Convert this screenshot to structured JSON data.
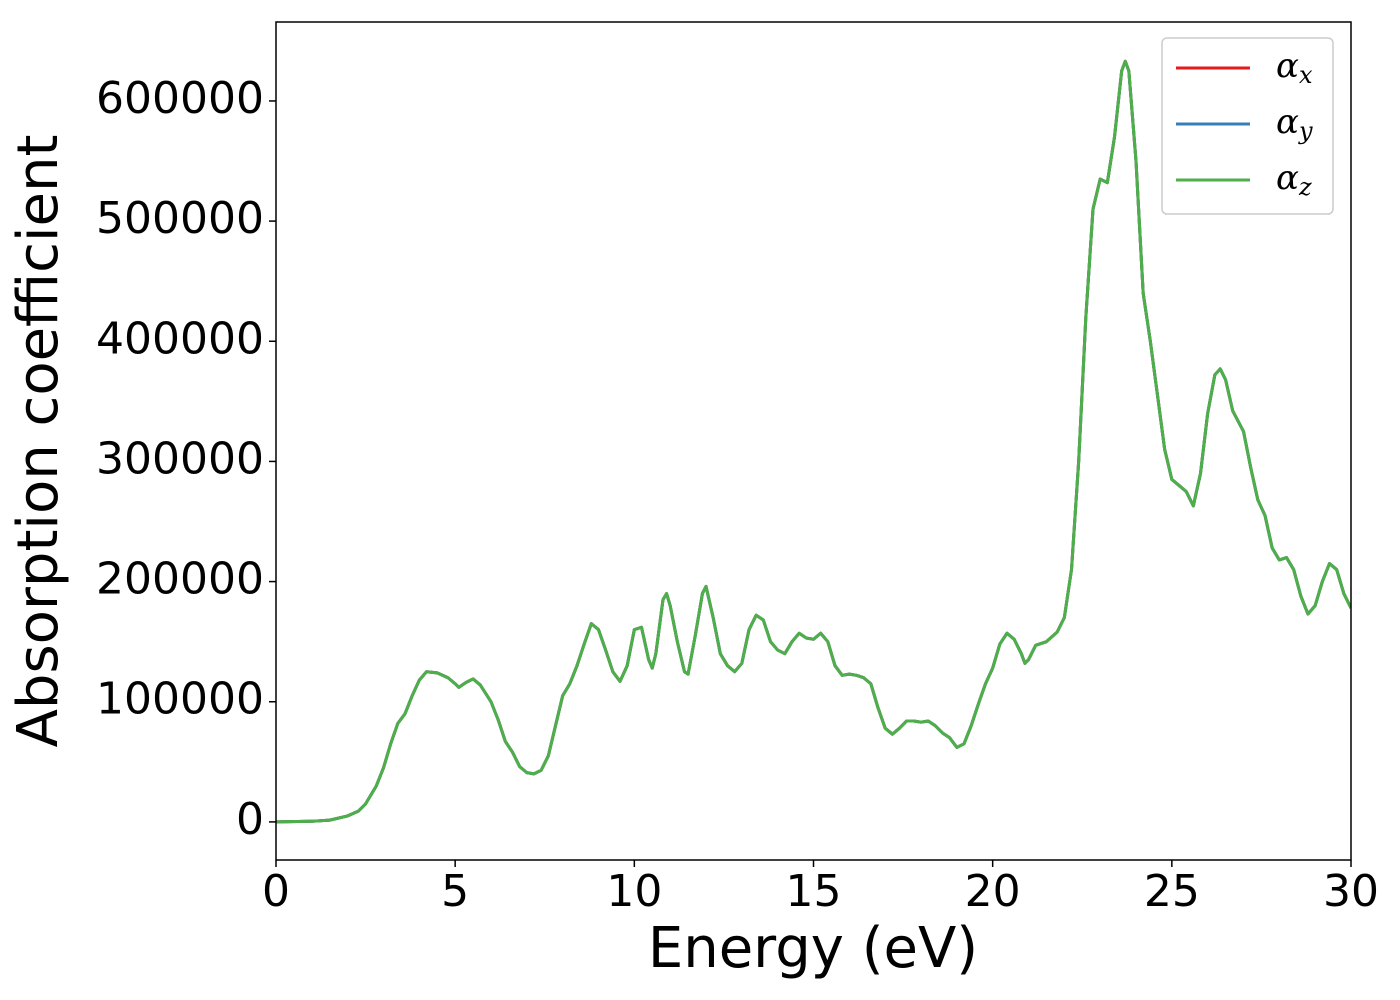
{
  "chart_data": {
    "type": "line",
    "xlabel": "Energy (eV)",
    "ylabel": "Absorption coefficient",
    "x": [
      0,
      1,
      1.5,
      2,
      2.3,
      2.5,
      2.8,
      3.0,
      3.2,
      3.4,
      3.6,
      3.8,
      4.0,
      4.2,
      4.5,
      4.8,
      5.0,
      5.1,
      5.3,
      5.5,
      5.7,
      6.0,
      6.2,
      6.4,
      6.6,
      6.8,
      7.0,
      7.2,
      7.4,
      7.6,
      7.8,
      8.0,
      8.2,
      8.4,
      8.6,
      8.8,
      9.0,
      9.2,
      9.4,
      9.6,
      9.8,
      10.0,
      10.2,
      10.4,
      10.5,
      10.6,
      10.8,
      10.9,
      11.0,
      11.2,
      11.4,
      11.5,
      11.7,
      11.9,
      12.0,
      12.2,
      12.4,
      12.6,
      12.8,
      13.0,
      13.2,
      13.4,
      13.6,
      13.8,
      14.0,
      14.2,
      14.4,
      14.6,
      14.8,
      15.0,
      15.2,
      15.4,
      15.6,
      15.8,
      16.0,
      16.2,
      16.4,
      16.6,
      16.8,
      17.0,
      17.2,
      17.4,
      17.6,
      17.8,
      18.0,
      18.2,
      18.4,
      18.6,
      18.8,
      19.0,
      19.2,
      19.4,
      19.6,
      19.8,
      20.0,
      20.2,
      20.4,
      20.6,
      20.8,
      20.9,
      21.0,
      21.2,
      21.5,
      21.8,
      22.0,
      22.2,
      22.4,
      22.6,
      22.8,
      23.0,
      23.2,
      23.4,
      23.6,
      23.7,
      23.8,
      24.0,
      24.2,
      24.4,
      24.6,
      24.8,
      25.0,
      25.2,
      25.4,
      25.6,
      25.8,
      26.0,
      26.2,
      26.35,
      26.5,
      26.7,
      27.0,
      27.2,
      27.4,
      27.6,
      27.8,
      28.0,
      28.2,
      28.4,
      28.6,
      28.8,
      29.0,
      29.2,
      29.4,
      29.6,
      29.8,
      30.0
    ],
    "series": [
      {
        "name": "αx",
        "color": "#e41a1c",
        "values": [
          0,
          500,
          1500,
          5000,
          9000,
          15000,
          30000,
          45000,
          65000,
          82000,
          90000,
          105000,
          118000,
          125000,
          124000,
          120000,
          115000,
          112000,
          116000,
          119000,
          114000,
          100000,
          85000,
          67000,
          58000,
          46000,
          41000,
          40000,
          43000,
          55000,
          80000,
          105000,
          115000,
          130000,
          148000,
          165000,
          160000,
          143000,
          125000,
          117000,
          130000,
          160000,
          162000,
          135000,
          128000,
          140000,
          185000,
          190000,
          180000,
          150000,
          125000,
          123000,
          155000,
          190000,
          196000,
          170000,
          140000,
          130000,
          125000,
          132000,
          160000,
          172000,
          168000,
          150000,
          143000,
          140000,
          150000,
          157000,
          153000,
          152000,
          157000,
          150000,
          130000,
          122000,
          123000,
          122000,
          120000,
          115000,
          95000,
          78000,
          73000,
          78000,
          84000,
          84000,
          83000,
          84000,
          80000,
          74000,
          70000,
          62000,
          65000,
          80000,
          98000,
          115000,
          128000,
          148000,
          157000,
          152000,
          140000,
          132000,
          135000,
          147000,
          150000,
          158000,
          170000,
          210000,
          300000,
          420000,
          510000,
          535000,
          532000,
          570000,
          625000,
          633000,
          625000,
          550000,
          440000,
          400000,
          355000,
          310000,
          285000,
          280000,
          275000,
          263000,
          290000,
          340000,
          372000,
          377000,
          368000,
          342000,
          325000,
          295000,
          268000,
          255000,
          228000,
          218000,
          220000,
          210000,
          188000,
          173000,
          180000,
          200000,
          215000,
          210000,
          190000,
          178000
        ]
      },
      {
        "name": "αy",
        "color": "#377eb8",
        "values": [
          0,
          500,
          1500,
          5000,
          9000,
          15000,
          30000,
          45000,
          65000,
          82000,
          90000,
          105000,
          118000,
          125000,
          124000,
          120000,
          115000,
          112000,
          116000,
          119000,
          114000,
          100000,
          85000,
          67000,
          58000,
          46000,
          41000,
          40000,
          43000,
          55000,
          80000,
          105000,
          115000,
          130000,
          148000,
          165000,
          160000,
          143000,
          125000,
          117000,
          130000,
          160000,
          162000,
          135000,
          128000,
          140000,
          185000,
          190000,
          180000,
          150000,
          125000,
          123000,
          155000,
          190000,
          196000,
          170000,
          140000,
          130000,
          125000,
          132000,
          160000,
          172000,
          168000,
          150000,
          143000,
          140000,
          150000,
          157000,
          153000,
          152000,
          157000,
          150000,
          130000,
          122000,
          123000,
          122000,
          120000,
          115000,
          95000,
          78000,
          73000,
          78000,
          84000,
          84000,
          83000,
          84000,
          80000,
          74000,
          70000,
          62000,
          65000,
          80000,
          98000,
          115000,
          128000,
          148000,
          157000,
          152000,
          140000,
          132000,
          135000,
          147000,
          150000,
          158000,
          170000,
          210000,
          300000,
          420000,
          510000,
          535000,
          532000,
          570000,
          625000,
          633000,
          625000,
          550000,
          440000,
          400000,
          355000,
          310000,
          285000,
          280000,
          275000,
          263000,
          290000,
          340000,
          372000,
          377000,
          368000,
          342000,
          325000,
          295000,
          268000,
          255000,
          228000,
          218000,
          220000,
          210000,
          188000,
          173000,
          180000,
          200000,
          215000,
          210000,
          190000,
          178000
        ]
      },
      {
        "name": "αz",
        "color": "#4daf4a",
        "values": [
          0,
          500,
          1500,
          5000,
          9000,
          15000,
          30000,
          45000,
          65000,
          82000,
          90000,
          105000,
          118000,
          125000,
          124000,
          120000,
          115000,
          112000,
          116000,
          119000,
          114000,
          100000,
          85000,
          67000,
          58000,
          46000,
          41000,
          40000,
          43000,
          55000,
          80000,
          105000,
          115000,
          130000,
          148000,
          165000,
          160000,
          143000,
          125000,
          117000,
          130000,
          160000,
          162000,
          135000,
          128000,
          140000,
          185000,
          190000,
          180000,
          150000,
          125000,
          123000,
          155000,
          190000,
          196000,
          170000,
          140000,
          130000,
          125000,
          132000,
          160000,
          172000,
          168000,
          150000,
          143000,
          140000,
          150000,
          157000,
          153000,
          152000,
          157000,
          150000,
          130000,
          122000,
          123000,
          122000,
          120000,
          115000,
          95000,
          78000,
          73000,
          78000,
          84000,
          84000,
          83000,
          84000,
          80000,
          74000,
          70000,
          62000,
          65000,
          80000,
          98000,
          115000,
          128000,
          148000,
          157000,
          152000,
          140000,
          132000,
          135000,
          147000,
          150000,
          158000,
          170000,
          210000,
          300000,
          420000,
          510000,
          535000,
          532000,
          570000,
          625000,
          633000,
          625000,
          550000,
          440000,
          400000,
          355000,
          310000,
          285000,
          280000,
          275000,
          263000,
          290000,
          340000,
          372000,
          377000,
          368000,
          342000,
          325000,
          295000,
          268000,
          255000,
          228000,
          218000,
          220000,
          210000,
          188000,
          173000,
          180000,
          200000,
          215000,
          210000,
          190000,
          178000
        ]
      }
    ],
    "xlim": [
      0,
      30
    ],
    "xticks": [
      0,
      5,
      10,
      15,
      20,
      25,
      30
    ],
    "ylim": [
      -31700,
      665700
    ],
    "yticks": [
      0,
      100000,
      200000,
      300000,
      400000,
      500000,
      600000
    ],
    "grid": false,
    "legend": "upper right"
  }
}
